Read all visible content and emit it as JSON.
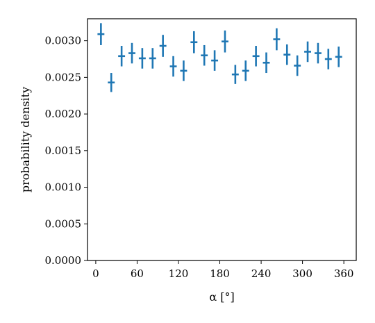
{
  "chart_data": {
    "type": "scatter",
    "xlabel": "α [°]",
    "ylabel": "probability density",
    "xlim": [
      -12,
      378
    ],
    "ylim": [
      0.0,
      0.0033
    ],
    "x_ticks": [
      0,
      60,
      120,
      180,
      240,
      300,
      360
    ],
    "x_tick_labels": [
      "0",
      "60",
      "120",
      "180",
      "240",
      "300",
      "360"
    ],
    "y_ticks": [
      0.0,
      0.0005,
      0.001,
      0.0015,
      0.002,
      0.0025,
      0.003
    ],
    "y_tick_labels": [
      "0.0000",
      "0.0005",
      "0.0010",
      "0.0015",
      "0.0020",
      "0.0025",
      "0.0030"
    ],
    "grid": false,
    "color": "#1f77b4",
    "bin_halfwidth": 5,
    "series": [
      {
        "x": [
          7.5,
          22.5,
          37.5,
          52.5,
          67.5,
          82.5,
          97.5,
          112.5,
          127.5,
          142.5,
          157.5,
          172.5,
          187.5,
          202.5,
          217.5,
          232.5,
          247.5,
          262.5,
          277.5,
          292.5,
          307.5,
          322.5,
          337.5,
          352.5
        ],
        "y": [
          0.00309,
          0.00243,
          0.00279,
          0.00283,
          0.00276,
          0.00276,
          0.00293,
          0.00265,
          0.00259,
          0.00298,
          0.0028,
          0.00273,
          0.00299,
          0.00254,
          0.00259,
          0.00279,
          0.0027,
          0.00302,
          0.00281,
          0.00266,
          0.00285,
          0.00283,
          0.00275,
          0.00278
        ],
        "yerr": [
          0.00015,
          0.00013,
          0.00014,
          0.00014,
          0.00014,
          0.00014,
          0.00015,
          0.00014,
          0.00014,
          0.00015,
          0.00014,
          0.00014,
          0.00015,
          0.00013,
          0.00014,
          0.00014,
          0.00014,
          0.00015,
          0.00014,
          0.00014,
          0.00014,
          0.00014,
          0.00014,
          0.00014
        ]
      }
    ]
  }
}
